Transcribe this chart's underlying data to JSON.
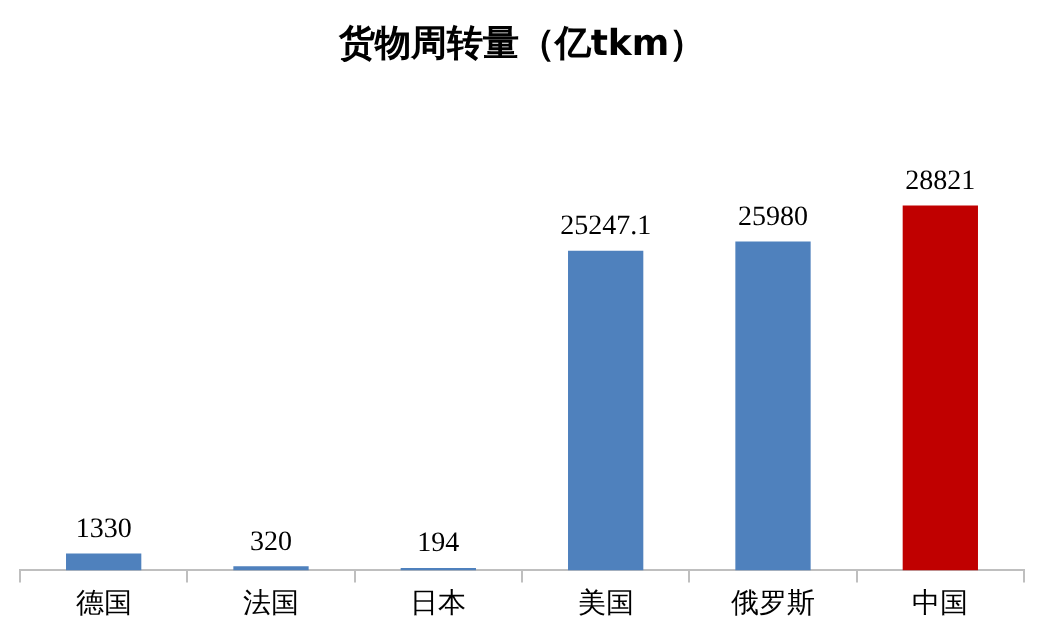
{
  "chart_data": {
    "type": "bar",
    "title": "货物周转量（亿tkm）",
    "categories": [
      "德国",
      "法国",
      "日本",
      "美国",
      "俄罗斯",
      "中国"
    ],
    "values": [
      1330,
      320,
      194,
      25247.1,
      25980,
      28821
    ],
    "colors": [
      "#4f81bd",
      "#4f81bd",
      "#4f81bd",
      "#4f81bd",
      "#4f81bd",
      "#c00000"
    ],
    "data_labels": true,
    "tick_labels": "x",
    "grid": false,
    "legend": false
  }
}
